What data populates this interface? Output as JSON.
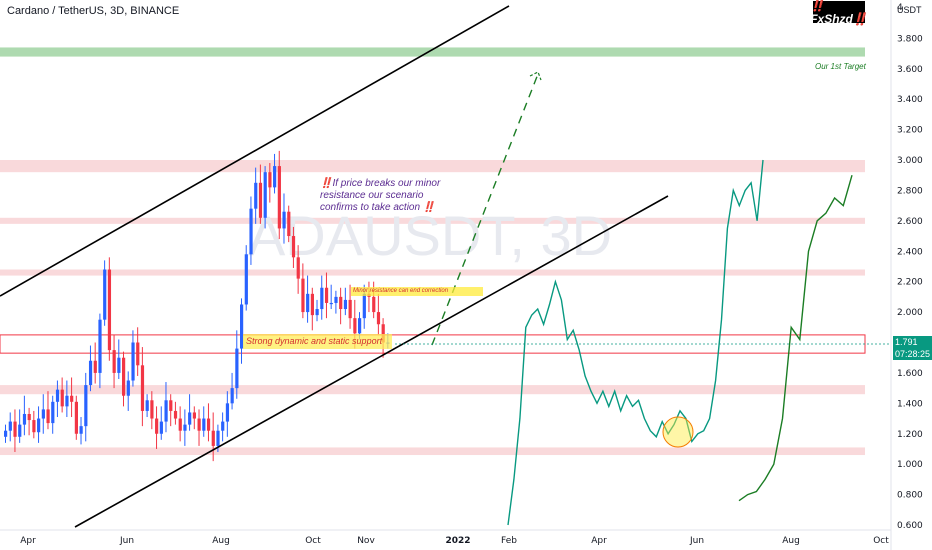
{
  "header": {
    "title": "Cardano / TetherUS, 3D, BINANCE"
  },
  "brand": {
    "logo_text": "‼️FxShzd‼️"
  },
  "watermark": {
    "symbol": "ADAUSDT, 3D"
  },
  "price_axis": {
    "currency": "USDT",
    "ticks": [
      "0.600",
      "0.800",
      "1.000",
      "1.200",
      "1.400",
      "1.600",
      "1.800",
      "2.000",
      "2.200",
      "2.400",
      "2.600",
      "2.800",
      "3.000",
      "3.200",
      "3.400",
      "3.600",
      "3.800",
      "4"
    ],
    "last_price": "1.791",
    "countdown": "07:28:25"
  },
  "time_axis": {
    "ticks": [
      "Apr",
      "Jun",
      "Aug",
      "Oct",
      "Nov",
      "2022",
      "Feb",
      "Apr",
      "Jun",
      "Aug",
      "Oct"
    ]
  },
  "annotations": {
    "target": "Our 1st Target",
    "scenario_line1": "‼️If price breaks our minor",
    "scenario_line2": "resistance our scenario",
    "scenario_line3": "confirms to take action ‼️",
    "minor_resistance": "Minor resistance can end correction",
    "support": "Strong dynamic and static support"
  },
  "colors": {
    "up_candle": "#2962ff",
    "down_candle": "#f23645",
    "projection": "#089981",
    "projection_dark": "#1b7d24",
    "channel": "#000000",
    "zone": "#f7c9cc",
    "target_zone": "#a5d6a7",
    "last_price_bg": "#089981"
  },
  "chart_data": {
    "type": "candlestick",
    "title": "Cardano / TetherUS, 3D, BINANCE",
    "y_unit": "USDT",
    "ylim": [
      0.6,
      4.0
    ],
    "grid": false,
    "x_ticks": [
      "Apr",
      "Jun",
      "Aug",
      "Oct",
      "Nov",
      "2022",
      "Feb",
      "Apr",
      "Jun",
      "Aug",
      "Oct"
    ],
    "candles_close": [
      1.22,
      1.28,
      1.18,
      1.26,
      1.33,
      1.29,
      1.21,
      1.3,
      1.36,
      1.27,
      1.41,
      1.49,
      1.38,
      1.45,
      1.41,
      1.2,
      1.25,
      1.52,
      1.68,
      1.6,
      1.95,
      2.28,
      1.75,
      1.6,
      1.7,
      1.45,
      1.55,
      1.8,
      1.65,
      1.35,
      1.42,
      1.3,
      1.2,
      1.28,
      1.42,
      1.35,
      1.3,
      1.22,
      1.26,
      1.34,
      1.3,
      1.22,
      1.3,
      1.22,
      1.12,
      1.22,
      1.28,
      1.4,
      1.5,
      1.76,
      2.05,
      2.38,
      2.68,
      2.85,
      2.62,
      2.92,
      2.82,
      2.96,
      2.55,
      2.66,
      2.5,
      2.36,
      2.22,
      2.0,
      2.12,
      1.98,
      2.02,
      2.16,
      2.06,
      2.06,
      2.1,
      2.02,
      2.08,
      1.96,
      1.86,
      1.96,
      2.12,
      2.1,
      2.0,
      1.92,
      1.8,
      1.8
    ],
    "zones": [
      {
        "label": "Our 1st Target",
        "from": 3.68,
        "to": 3.74
      },
      {
        "from": 2.92,
        "to": 3.0
      },
      {
        "from": 2.58,
        "to": 2.62
      },
      {
        "from": 2.24,
        "to": 2.28
      },
      {
        "label": "Strong dynamic and static support",
        "from": 1.73,
        "to": 1.85
      },
      {
        "from": 1.46,
        "to": 1.52
      },
      {
        "from": 1.06,
        "to": 1.11
      }
    ],
    "projections": [
      {
        "values": [
          0.6,
          0.9,
          1.3,
          1.9,
          1.98,
          2.02,
          1.92,
          2.05,
          2.2,
          2.08,
          1.82,
          1.88,
          1.75,
          1.58,
          1.48,
          1.4,
          1.48,
          1.38,
          1.48,
          1.35,
          1.45,
          1.38,
          1.42,
          1.3,
          1.22,
          1.18,
          1.28,
          1.2,
          1.26,
          1.35,
          1.3,
          1.15,
          1.2,
          1.22,
          1.3,
          1.55,
          1.95,
          2.55,
          2.8,
          2.7,
          2.8,
          2.85,
          2.6,
          3.0
        ]
      },
      {
        "values": [
          0.76,
          0.8,
          0.82,
          0.9,
          1.0,
          1.3,
          1.9,
          1.82,
          2.4,
          2.6,
          2.65,
          2.75,
          2.7,
          2.9
        ]
      }
    ]
  }
}
